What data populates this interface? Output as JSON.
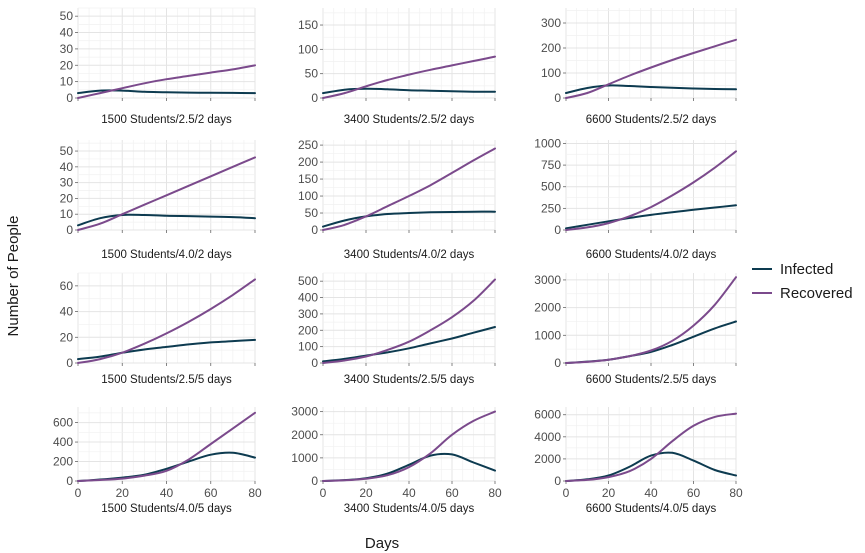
{
  "chart_data": {
    "type": "line",
    "xlabel": "Days",
    "ylabel": "Number of People",
    "colors": {
      "Infected": "#0d3b50",
      "Recovered": "#7b4a8c"
    },
    "legend": {
      "placement": "right",
      "entries": [
        "Infected",
        "Recovered"
      ]
    },
    "grid": true,
    "x": [
      0,
      10,
      20,
      30,
      40,
      50,
      60,
      70,
      80
    ],
    "panels": [
      {
        "title": "1500 Students/2.5/2 days",
        "ylim": [
          0,
          55
        ],
        "yticks": [
          0,
          10,
          20,
          30,
          40,
          50
        ],
        "show_xticks": false,
        "series": [
          {
            "name": "Infected",
            "values": [
              3,
              4.5,
              4.5,
              3.8,
              3.5,
              3.3,
              3.2,
              3.1,
              3
            ]
          },
          {
            "name": "Recovered",
            "values": [
              0,
              3,
              6,
              9,
              11.5,
              13.5,
              15.5,
              17.5,
              20
            ]
          }
        ]
      },
      {
        "title": "3400 Students/2.5/2 days",
        "ylim": [
          0,
          185
        ],
        "yticks": [
          0,
          50,
          100,
          150
        ],
        "show_xticks": false,
        "series": [
          {
            "name": "Infected",
            "values": [
              10,
              17,
              19,
              18,
              16,
              15,
              14,
              13,
              13
            ]
          },
          {
            "name": "Recovered",
            "values": [
              0,
              10,
              24,
              37,
              48,
              58,
              67,
              76,
              85
            ]
          }
        ]
      },
      {
        "title": "6600 Students/2.5/2 days",
        "ylim": [
          0,
          360
        ],
        "yticks": [
          0,
          100,
          200,
          300
        ],
        "show_xticks": false,
        "series": [
          {
            "name": "Infected",
            "values": [
              20,
              40,
              50,
              48,
              44,
              41,
              38,
              36,
              35
            ]
          },
          {
            "name": "Recovered",
            "values": [
              0,
              20,
              55,
              90,
              122,
              152,
              180,
              207,
              233
            ]
          }
        ]
      },
      {
        "title": "1500 Students/4.0/2 days",
        "ylim": [
          0,
          57
        ],
        "yticks": [
          0,
          10,
          20,
          30,
          40,
          50
        ],
        "show_xticks": false,
        "series": [
          {
            "name": "Infected",
            "values": [
              3,
              7.5,
              9.5,
              9.5,
              9,
              8.8,
              8.5,
              8.2,
              7.5
            ]
          },
          {
            "name": "Recovered",
            "values": [
              0,
              4,
              10,
              16,
              22,
              28,
              34,
              40,
              46
            ]
          }
        ]
      },
      {
        "title": "3400 Students/4.0/2 days",
        "ylim": [
          0,
          265
        ],
        "yticks": [
          0,
          50,
          100,
          150,
          200,
          250
        ],
        "show_xticks": false,
        "series": [
          {
            "name": "Infected",
            "values": [
              10,
              28,
              40,
              47,
              50,
              52,
              53,
              54,
              54
            ]
          },
          {
            "name": "Recovered",
            "values": [
              0,
              15,
              40,
              70,
              100,
              132,
              168,
              205,
              240
            ]
          }
        ]
      },
      {
        "title": "6600 Students/4.0/2 days",
        "ylim": [
          0,
          1040
        ],
        "yticks": [
          0,
          250,
          500,
          750,
          1000
        ],
        "show_xticks": false,
        "series": [
          {
            "name": "Infected",
            "values": [
              20,
              60,
              100,
              140,
              175,
              205,
              235,
              260,
              285
            ]
          },
          {
            "name": "Recovered",
            "values": [
              0,
              30,
              80,
              160,
              265,
              400,
              550,
              720,
              910
            ]
          }
        ]
      },
      {
        "title": "1500 Students/2.5/5 days",
        "ylim": [
          0,
          70
        ],
        "yticks": [
          0,
          20,
          40,
          60
        ],
        "show_xticks": false,
        "series": [
          {
            "name": "Infected",
            "values": [
              3,
              5,
              8,
              10.5,
              12.5,
              14.5,
              16,
              17,
              18
            ]
          },
          {
            "name": "Recovered",
            "values": [
              0,
              3,
              8,
              15,
              23,
              32,
              42,
              53,
              65
            ]
          }
        ]
      },
      {
        "title": "3400 Students/2.5/5 days",
        "ylim": [
          0,
          550
        ],
        "yticks": [
          0,
          100,
          200,
          300,
          400,
          500
        ],
        "show_xticks": false,
        "series": [
          {
            "name": "Infected",
            "values": [
              10,
              25,
              45,
              65,
              90,
              120,
              150,
              185,
              220
            ]
          },
          {
            "name": "Recovered",
            "values": [
              0,
              15,
              40,
              80,
              130,
              200,
              280,
              380,
              510
            ]
          }
        ]
      },
      {
        "title": "6600 Students/2.5/5 days",
        "ylim": [
          0,
          3250
        ],
        "yticks": [
          0,
          1000,
          2000,
          3000
        ],
        "show_xticks": false,
        "series": [
          {
            "name": "Infected",
            "values": [
              0,
              50,
              120,
              250,
              400,
              650,
              950,
              1250,
              1500
            ]
          },
          {
            "name": "Recovered",
            "values": [
              0,
              40,
              120,
              250,
              450,
              800,
              1350,
              2100,
              3100
            ]
          }
        ]
      },
      {
        "title": "1500 Students/4.0/5 days",
        "ylim": [
          0,
          760
        ],
        "yticks": [
          0,
          200,
          400,
          600
        ],
        "show_xticks": true,
        "series": [
          {
            "name": "Infected",
            "values": [
              0,
              15,
              35,
              65,
              125,
              200,
              270,
              290,
              240
            ]
          },
          {
            "name": "Recovered",
            "values": [
              0,
              10,
              25,
              55,
              105,
              220,
              380,
              540,
              700
            ]
          }
        ]
      },
      {
        "title": "3400 Students/4.0/5 days",
        "ylim": [
          0,
          3200
        ],
        "yticks": [
          0,
          1000,
          2000,
          3000
        ],
        "show_xticks": true,
        "series": [
          {
            "name": "Infected",
            "values": [
              0,
              40,
              120,
              320,
              700,
              1100,
              1150,
              800,
              450
            ]
          },
          {
            "name": "Recovered",
            "values": [
              0,
              30,
              100,
              250,
              600,
              1200,
              2000,
              2600,
              3000
            ]
          }
        ]
      },
      {
        "title": "6600 Students/4.0/5 days",
        "ylim": [
          0,
          6700
        ],
        "yticks": [
          0,
          2000,
          4000,
          6000
        ],
        "show_xticks": true,
        "series": [
          {
            "name": "Infected",
            "values": [
              0,
              150,
              500,
              1300,
              2300,
              2550,
              1850,
              1000,
              500
            ]
          },
          {
            "name": "Recovered",
            "values": [
              0,
              100,
              350,
              900,
              2000,
              3600,
              5000,
              5800,
              6100
            ]
          }
        ]
      }
    ]
  }
}
